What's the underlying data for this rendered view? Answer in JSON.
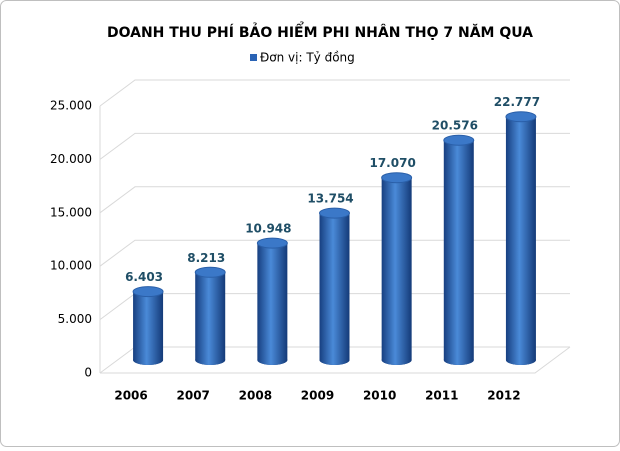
{
  "chart_data": {
    "type": "bar",
    "title": "DOANH THU PHÍ BẢO HIỂM PHI NHÂN THỌ 7 NĂM QUA",
    "categories": [
      "2006",
      "2007",
      "2008",
      "2009",
      "2010",
      "2011",
      "2012"
    ],
    "series": [
      {
        "name": "Đơn vị: Tỷ đồng",
        "color": "#2a63b5",
        "values": [
          6403,
          8213,
          10948,
          13754,
          17070,
          20576,
          22777
        ],
        "value_labels": [
          "6.403",
          "8.213",
          "10.948",
          "13.754",
          "17.070",
          "20.576",
          "22.777"
        ]
      }
    ],
    "ylim": [
      0,
      25000
    ],
    "yticks": [
      0,
      {
        "value": 5000,
        "label": "5.000"
      },
      {
        "value": 10000,
        "label": "10.000"
      },
      {
        "value": 15000,
        "label": "15.000"
      },
      {
        "value": 20000,
        "label": "20.000"
      },
      {
        "value": 25000,
        "label": "25.000"
      }
    ],
    "grid": true
  }
}
